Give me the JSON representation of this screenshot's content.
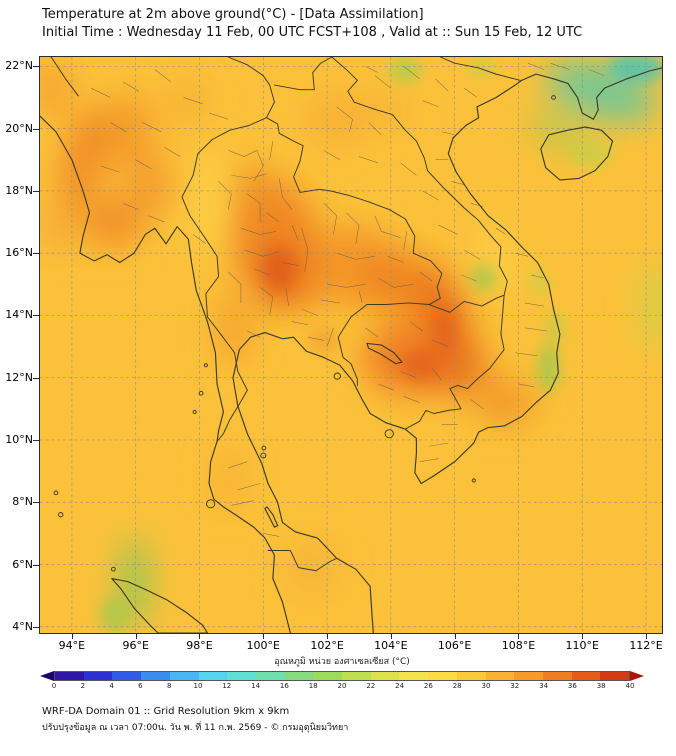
{
  "header": {
    "title_line1": "Temperature at 2m above ground(°C) - [Data Assimilation]",
    "title_line2": "Initial Time : Wednesday 11 Feb, 00 UTC FCST+108 , Valid at :: Sun 15 Feb, 12 UTC"
  },
  "map": {
    "extent": {
      "lon_min": 93.0,
      "lon_max": 112.5,
      "lat_min": 3.8,
      "lat_max": 22.3
    },
    "lon_ticks": [
      {
        "value": 94,
        "label": "94°E"
      },
      {
        "value": 96,
        "label": "96°E"
      },
      {
        "value": 98,
        "label": "98°E"
      },
      {
        "value": 100,
        "label": "100°E"
      },
      {
        "value": 102,
        "label": "102°E"
      },
      {
        "value": 104,
        "label": "104°E"
      },
      {
        "value": 106,
        "label": "106°E"
      },
      {
        "value": 108,
        "label": "108°E"
      },
      {
        "value": 110,
        "label": "110°E"
      },
      {
        "value": 112,
        "label": "112°E"
      }
    ],
    "lat_ticks": [
      {
        "value": 4,
        "label": "4°N"
      },
      {
        "value": 6,
        "label": "6°N"
      },
      {
        "value": 8,
        "label": "8°N"
      },
      {
        "value": 10,
        "label": "10°N"
      },
      {
        "value": 12,
        "label": "12°N"
      },
      {
        "value": 14,
        "label": "14°N"
      },
      {
        "value": 16,
        "label": "16°N"
      },
      {
        "value": 18,
        "label": "18°N"
      },
      {
        "value": 20,
        "label": "20°N"
      },
      {
        "value": 22,
        "label": "22°N"
      }
    ]
  },
  "temperature_field": {
    "base_color": "#fbc13a",
    "blobs": [
      {
        "lon": 94.35,
        "lat": 19.0,
        "rx": 0.6,
        "ry": 1.7,
        "rot": 12,
        "color": "#ED7C1E",
        "op": 0.8,
        "blur": "b"
      },
      {
        "lon": 95.7,
        "lat": 19.9,
        "rx": 0.85,
        "ry": 1.2,
        "rot": 0,
        "color": "#F29224",
        "op": 0.75,
        "blur": "b"
      },
      {
        "lon": 96.45,
        "lat": 18.2,
        "rx": 0.7,
        "ry": 1.0,
        "rot": 0,
        "color": "#F19026",
        "op": 0.7,
        "blur": "b"
      },
      {
        "lon": 95.3,
        "lat": 17.0,
        "rx": 0.95,
        "ry": 0.85,
        "rot": 0,
        "color": "#ED8220",
        "op": 0.75,
        "blur": "b"
      },
      {
        "lon": 93.4,
        "lat": 21.3,
        "rx": 0.6,
        "ry": 0.9,
        "rot": 0,
        "color": "#F09028",
        "op": 0.6,
        "blur": "b"
      },
      {
        "lon": 93.6,
        "lat": 16.8,
        "rx": 0.5,
        "ry": 0.9,
        "rot": 0,
        "color": "#F0962C",
        "op": 0.5,
        "blur": "b"
      },
      {
        "lon": 97.6,
        "lat": 20.9,
        "rx": 0.7,
        "ry": 0.6,
        "rot": 0,
        "color": "#F4A02C",
        "op": 0.5,
        "blur": "b"
      },
      {
        "lon": 100.3,
        "lat": 16.6,
        "rx": 1.35,
        "ry": 1.7,
        "rot": 0,
        "color": "#EE7C1E",
        "op": 0.85,
        "blur": "b"
      },
      {
        "lon": 100.7,
        "lat": 15.2,
        "rx": 1.05,
        "ry": 1.05,
        "rot": 0,
        "color": "#E5661A",
        "op": 0.8,
        "blur": "b"
      },
      {
        "lon": 99.7,
        "lat": 17.9,
        "rx": 0.8,
        "ry": 1.0,
        "rot": 0,
        "color": "#F08E24",
        "op": 0.7,
        "blur": "b"
      },
      {
        "lon": 102.7,
        "lat": 15.6,
        "rx": 1.7,
        "ry": 1.25,
        "rot": 0,
        "color": "#F08A22",
        "op": 0.75,
        "blur": "b"
      },
      {
        "lon": 104.4,
        "lat": 15.0,
        "rx": 1.35,
        "ry": 1.05,
        "rot": 0,
        "color": "#ED7C1E",
        "op": 0.75,
        "blur": "b"
      },
      {
        "lon": 105.7,
        "lat": 13.9,
        "rx": 0.75,
        "ry": 1.6,
        "rot": -18,
        "color": "#E5661A",
        "op": 0.8,
        "blur": "b"
      },
      {
        "lon": 104.7,
        "lat": 12.6,
        "rx": 1.6,
        "ry": 1.15,
        "rot": 0,
        "color": "#ED7420",
        "op": 0.85,
        "blur": "b"
      },
      {
        "lon": 106.1,
        "lat": 12.3,
        "rx": 1.0,
        "ry": 0.9,
        "rot": 0,
        "color": "#E5661A",
        "op": 0.7,
        "blur": "b"
      },
      {
        "lon": 99.1,
        "lat": 13.6,
        "rx": 0.6,
        "ry": 1.25,
        "rot": 0,
        "color": "#F1922A",
        "op": 0.6,
        "blur": "b"
      },
      {
        "lon": 107.6,
        "lat": 11.2,
        "rx": 0.95,
        "ry": 0.75,
        "rot": 0,
        "color": "#F08A22",
        "op": 0.7,
        "blur": "b"
      },
      {
        "lon": 102.3,
        "lat": 20.3,
        "rx": 1.0,
        "ry": 0.85,
        "rot": 0,
        "color": "#F5A42E",
        "op": 0.55,
        "blur": "b"
      },
      {
        "lon": 103.9,
        "lat": 20.6,
        "rx": 0.75,
        "ry": 0.6,
        "rot": 0,
        "color": "#F5A830",
        "op": 0.5,
        "blur": "b"
      },
      {
        "lon": 101.5,
        "lat": 5.9,
        "rx": 0.9,
        "ry": 1.0,
        "rot": 0,
        "color": "#F5A830",
        "op": 0.45,
        "blur": "b"
      },
      {
        "lon": 98.9,
        "lat": 8.7,
        "rx": 0.5,
        "ry": 1.1,
        "rot": 0,
        "color": "#F5A42E",
        "op": 0.5,
        "blur": "b"
      },
      {
        "lon": 110.6,
        "lat": 21.2,
        "rx": 1.8,
        "ry": 0.85,
        "rot": 18,
        "color": "#5FC9A2",
        "op": 0.85,
        "blur": "b"
      },
      {
        "lon": 109.2,
        "lat": 19.9,
        "rx": 0.95,
        "ry": 0.5,
        "rot": 28,
        "color": "#8FCC55",
        "op": 0.6,
        "blur": "b"
      },
      {
        "lon": 95.95,
        "lat": 5.4,
        "rx": 0.5,
        "ry": 1.5,
        "rot": 0,
        "color": "#7CC85A",
        "op": 0.75,
        "blur": "b"
      },
      {
        "lon": 112.35,
        "lat": 14.3,
        "rx": 0.55,
        "ry": 1.4,
        "rot": 0,
        "color": "#B8D94C",
        "op": 0.55,
        "blur": "b"
      },
      {
        "lon": 98.4,
        "lat": 17.6,
        "rx": 0.55,
        "ry": 1.6,
        "rot": 0,
        "color": "#FFD94A",
        "op": 0.7,
        "blur": "b"
      },
      {
        "lon": 107.35,
        "lat": 15.8,
        "rx": 0.5,
        "ry": 1.2,
        "rot": -25,
        "color": "#FFD94A",
        "op": 0.55,
        "blur": "b"
      },
      {
        "lon": 104.45,
        "lat": 21.9,
        "rx": 0.5,
        "ry": 0.4,
        "rot": 0,
        "color": "#9CD24E",
        "op": 0.7,
        "blur": "s"
      },
      {
        "lon": 106.85,
        "lat": 21.95,
        "rx": 0.45,
        "ry": 0.3,
        "rot": 0,
        "color": "#AAD64E",
        "op": 0.5,
        "blur": "s"
      },
      {
        "lon": 108.95,
        "lat": 12.3,
        "rx": 0.35,
        "ry": 0.8,
        "rot": 0,
        "color": "#8CCB52",
        "op": 0.65,
        "blur": "s"
      },
      {
        "lon": 109.15,
        "lat": 13.6,
        "rx": 0.3,
        "ry": 0.5,
        "rot": 0,
        "color": "#A0D24E",
        "op": 0.5,
        "blur": "s"
      },
      {
        "lon": 106.9,
        "lat": 15.2,
        "rx": 0.4,
        "ry": 0.4,
        "rot": 0,
        "color": "#8CCB52",
        "op": 0.65,
        "blur": "s"
      },
      {
        "lon": 108.65,
        "lat": 15.05,
        "rx": 0.3,
        "ry": 0.45,
        "rot": 0,
        "color": "#AAD64E",
        "op": 0.45,
        "blur": "s"
      },
      {
        "lon": 110.3,
        "lat": 19.2,
        "rx": 0.7,
        "ry": 0.45,
        "rot": 0,
        "color": "#AFD84C",
        "op": 0.5,
        "blur": "s"
      },
      {
        "lon": 111.7,
        "lat": 21.95,
        "rx": 0.9,
        "ry": 0.5,
        "rot": 0,
        "color": "#49C4B4",
        "op": 0.8,
        "blur": "s"
      },
      {
        "lon": 95.3,
        "lat": 4.35,
        "rx": 0.45,
        "ry": 0.6,
        "rot": 0,
        "color": "#8CCB52",
        "op": 0.55,
        "blur": "s"
      },
      {
        "lon": 100.5,
        "lat": 15.5,
        "rx": 0.5,
        "ry": 0.7,
        "rot": 0,
        "color": "#DD5414",
        "op": 0.6,
        "blur": "s"
      },
      {
        "lon": 104.9,
        "lat": 12.4,
        "rx": 0.6,
        "ry": 0.5,
        "rot": 0,
        "color": "#DD5414",
        "op": 0.5,
        "blur": "s"
      },
      {
        "lon": 105.7,
        "lat": 13.6,
        "rx": 0.4,
        "ry": 0.8,
        "rot": 0,
        "color": "#DD5414",
        "op": 0.45,
        "blur": "s"
      },
      {
        "lon": 101.9,
        "lat": 13.2,
        "rx": 0.5,
        "ry": 0.4,
        "rot": 0,
        "color": "#F0922A",
        "op": 0.5,
        "blur": "s"
      }
    ]
  },
  "colorbar": {
    "title": "อุณหภูมิ หน่วย องศาเซลเซียส (°C)",
    "tick_labels": [
      "0",
      "2",
      "4",
      "6",
      "8",
      "10",
      "12",
      "14",
      "16",
      "18",
      "20",
      "22",
      "24",
      "26",
      "28",
      "30",
      "32",
      "34",
      "36",
      "38",
      "40"
    ],
    "segment_colors": [
      "#2f14a8",
      "#2b2fd4",
      "#2f5be8",
      "#3b8cf0",
      "#47b6f2",
      "#53d5f0",
      "#5fe0d2",
      "#6fdfae",
      "#84dc7e",
      "#9cdc5c",
      "#bfe04e",
      "#dde24c",
      "#f2e44a",
      "#fcdc42",
      "#fcc93a",
      "#fbb232",
      "#f79a2a",
      "#f07d22",
      "#e55c1a",
      "#d43a12"
    ],
    "arrow_left_color": "#1d0668",
    "arrow_right_color": "#b01208"
  },
  "footer": {
    "line1": "WRF-DA Domain 01 :: Grid Resolution 9km x 9km",
    "line2": "ปรับปรุงข้อมูล ณ เวลา 07:00น. วัน พ. ที่ 11 ก.พ. 2569 - © กรมอุตุนิยมวิทยา"
  }
}
